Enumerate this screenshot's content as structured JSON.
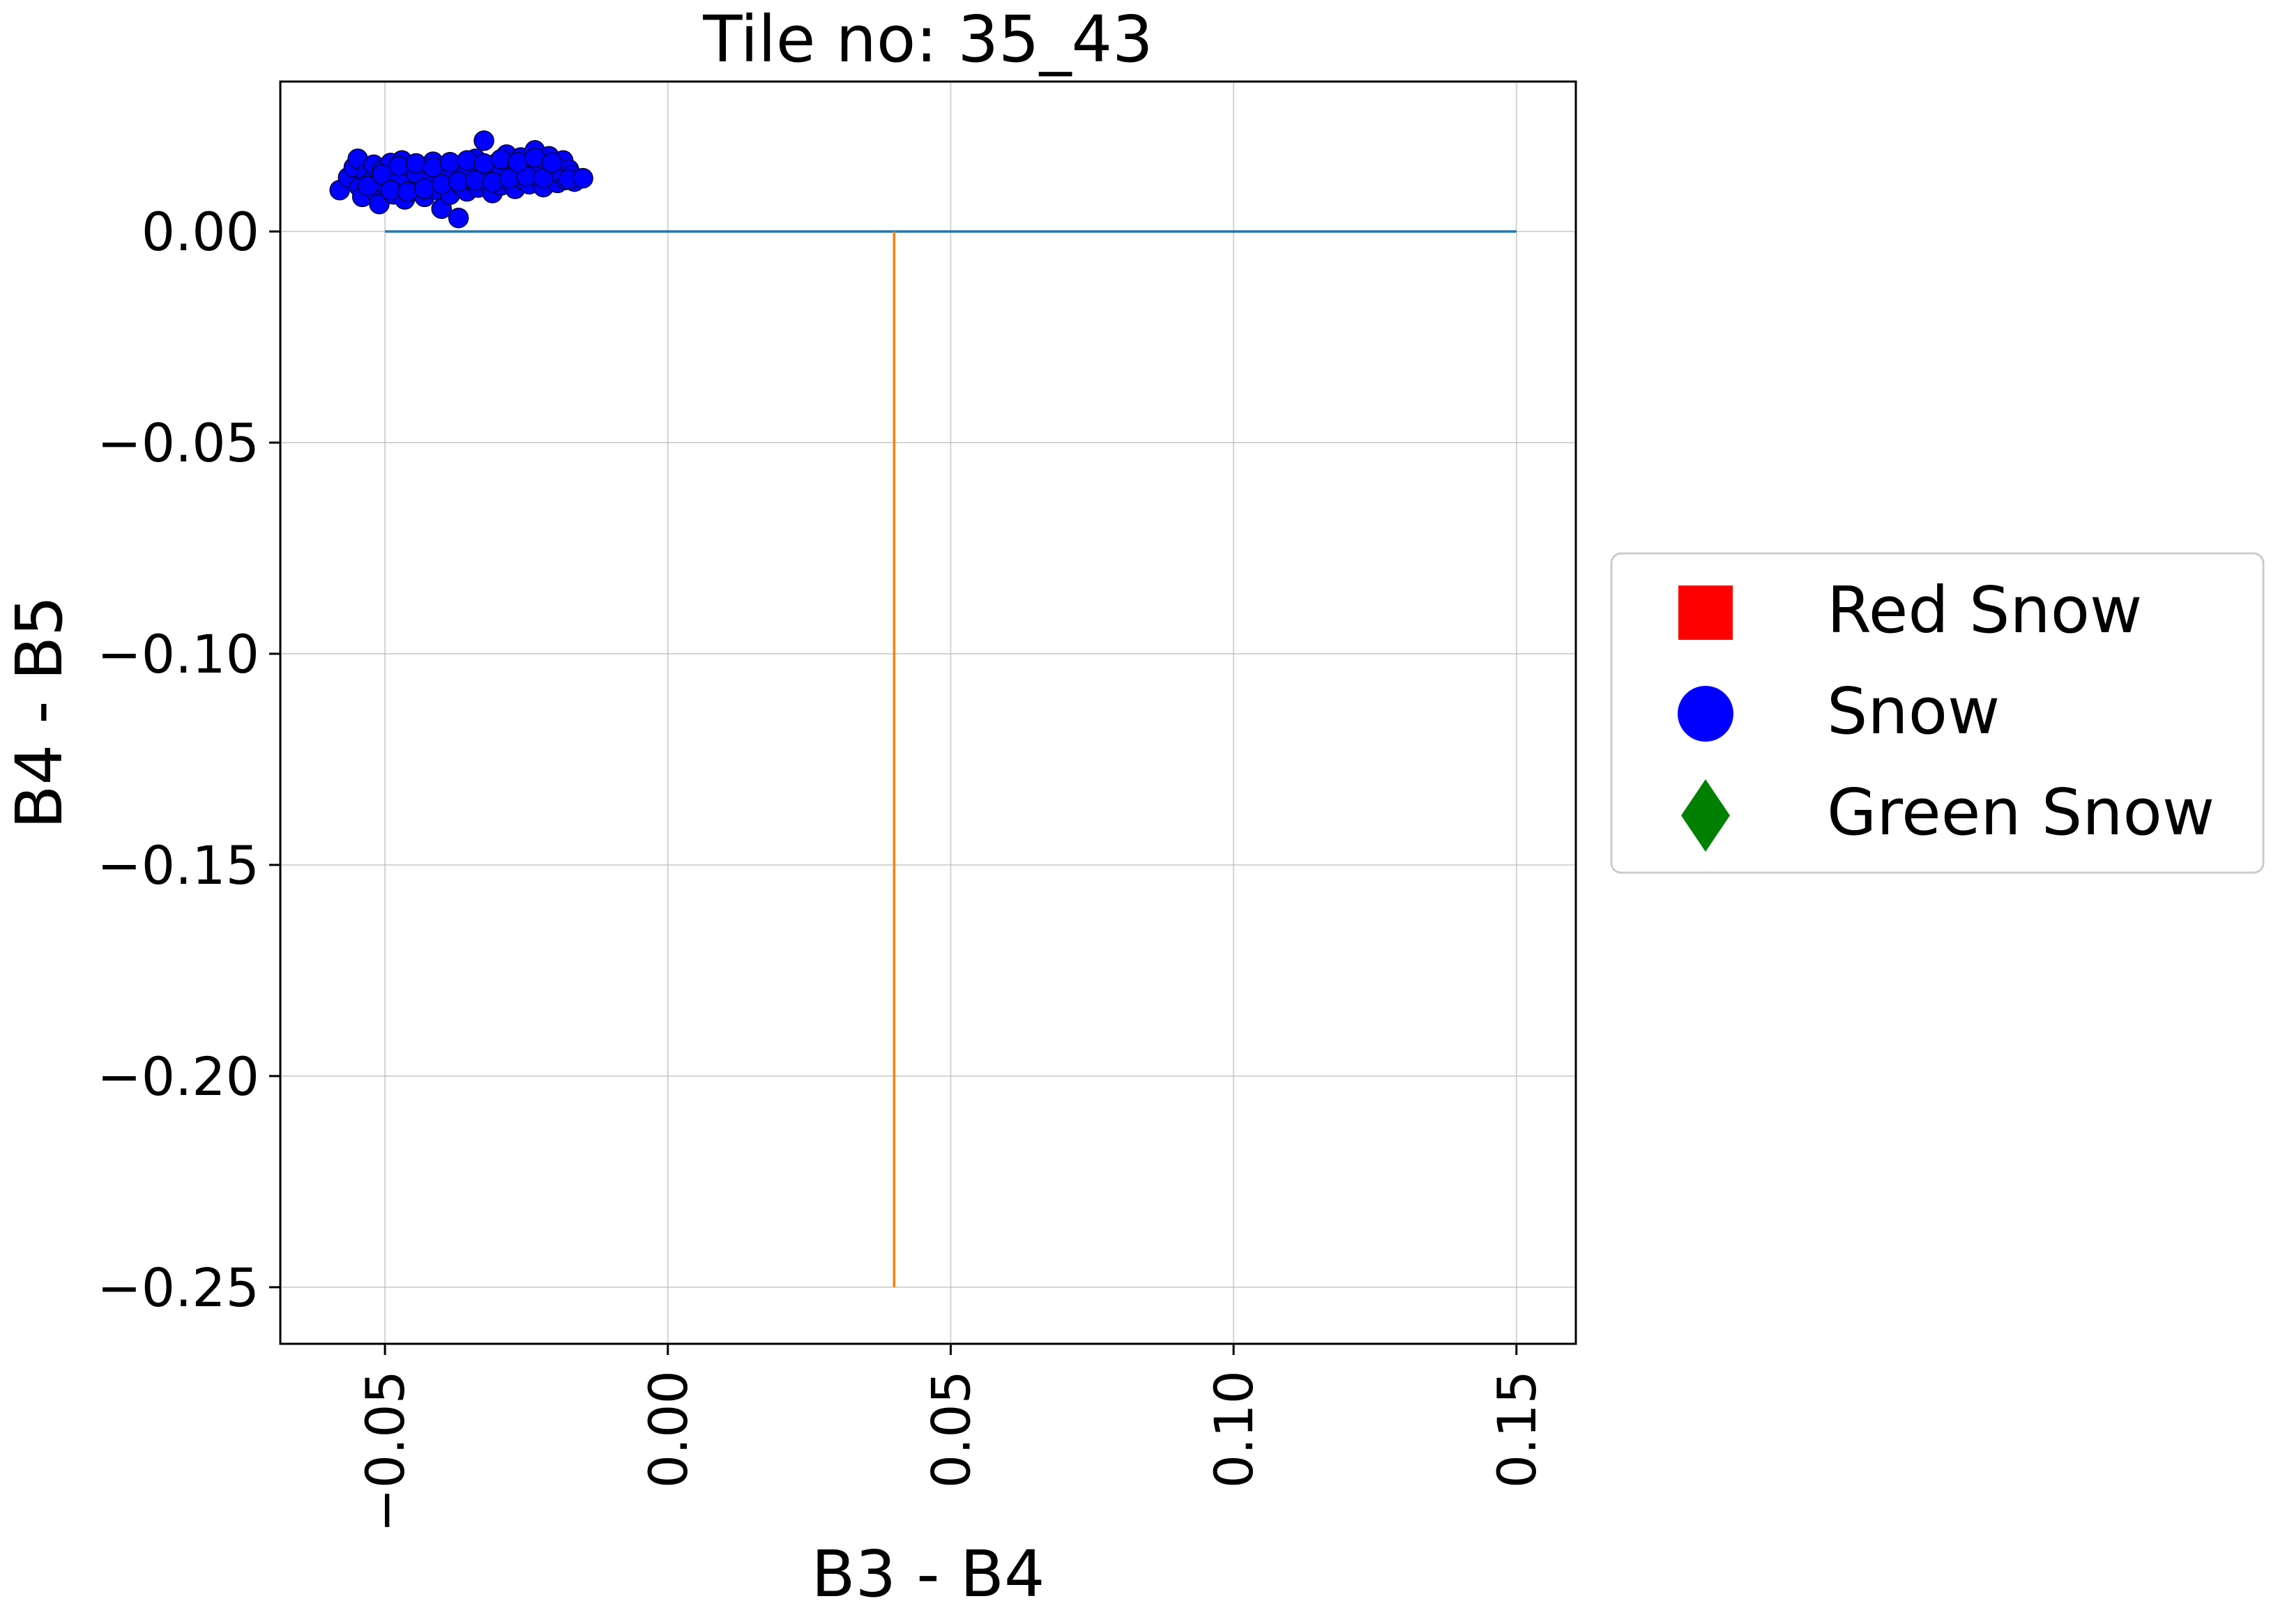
{
  "chart_data": {
    "type": "scatter",
    "title": "Tile no: 35_43",
    "xlabel": "B3 - B4",
    "ylabel": "B4 - B5",
    "xlim": [
      -0.0685,
      0.1605
    ],
    "ylim": [
      -0.2634,
      0.0355
    ],
    "x_ticks": [
      -0.05,
      0.0,
      0.05,
      0.1,
      0.15
    ],
    "x_tick_labels": [
      "−0.05",
      "0.00",
      "0.05",
      "0.10",
      "0.15"
    ],
    "y_ticks": [
      0.0,
      -0.05,
      -0.1,
      -0.15,
      -0.2,
      -0.25
    ],
    "y_tick_labels": [
      "0.00",
      "−0.05",
      "−0.10",
      "−0.15",
      "−0.20",
      "−0.25"
    ],
    "grid": true,
    "legend_position": "outside-right",
    "lines": [
      {
        "color": "#1f77b4",
        "x": [
          -0.05,
          0.15
        ],
        "y": [
          0.0,
          0.0
        ]
      },
      {
        "color": "#ff7f0e",
        "x": [
          0.04,
          0.04
        ],
        "y": [
          0.0,
          -0.25
        ]
      }
    ],
    "series": [
      {
        "name": "Red Snow",
        "marker": "square",
        "color": "#ff0000",
        "points": []
      },
      {
        "name": "Snow",
        "marker": "circle",
        "color": "#0000ff",
        "points": [
          [
            -0.058,
            0.0098
          ],
          [
            -0.0565,
            0.0128
          ],
          [
            -0.0555,
            0.0152
          ],
          [
            -0.0548,
            0.0172
          ],
          [
            -0.0545,
            0.0105
          ],
          [
            -0.054,
            0.0082
          ],
          [
            -0.0532,
            0.0138
          ],
          [
            -0.0525,
            0.0118
          ],
          [
            -0.052,
            0.0158
          ],
          [
            -0.0515,
            0.0092
          ],
          [
            -0.051,
            0.0065
          ],
          [
            -0.0505,
            0.0145
          ],
          [
            -0.05,
            0.0112
          ],
          [
            -0.0495,
            0.0128
          ],
          [
            -0.049,
            0.0162
          ],
          [
            -0.0485,
            0.0088
          ],
          [
            -0.048,
            0.0104
          ],
          [
            -0.0475,
            0.0142
          ],
          [
            -0.047,
            0.0168
          ],
          [
            -0.0465,
            0.0076
          ],
          [
            -0.046,
            0.0118
          ],
          [
            -0.0455,
            0.0133
          ],
          [
            -0.045,
            0.0096
          ],
          [
            -0.0445,
            0.0154
          ],
          [
            -0.044,
            0.0108
          ],
          [
            -0.0435,
            0.0125
          ],
          [
            -0.043,
            0.0082
          ],
          [
            -0.0425,
            0.0147
          ],
          [
            -0.042,
            0.0115
          ],
          [
            -0.0415,
            0.0165
          ],
          [
            -0.041,
            0.0099
          ],
          [
            -0.0405,
            0.0132
          ],
          [
            -0.04,
            0.0054
          ],
          [
            -0.0395,
            0.0118
          ],
          [
            -0.039,
            0.0143
          ],
          [
            -0.0385,
            0.0087
          ],
          [
            -0.038,
            0.0127
          ],
          [
            -0.0375,
            0.0157
          ],
          [
            -0.037,
            0.0032
          ],
          [
            -0.0365,
            0.0109
          ],
          [
            -0.036,
            0.0138
          ],
          [
            -0.0355,
            0.0095
          ],
          [
            -0.035,
            0.0123
          ],
          [
            -0.0345,
            0.0151
          ],
          [
            -0.034,
            0.0172
          ],
          [
            -0.0335,
            0.0104
          ],
          [
            -0.033,
            0.0138
          ],
          [
            -0.0325,
            0.0215
          ],
          [
            -0.032,
            0.0119
          ],
          [
            -0.0315,
            0.0146
          ],
          [
            -0.031,
            0.0091
          ],
          [
            -0.0305,
            0.0128
          ],
          [
            -0.03,
            0.0164
          ],
          [
            -0.0295,
            0.0109
          ],
          [
            -0.029,
            0.0137
          ],
          [
            -0.0285,
            0.0182
          ],
          [
            -0.028,
            0.0118
          ],
          [
            -0.0275,
            0.0152
          ],
          [
            -0.027,
            0.0101
          ],
          [
            -0.0265,
            0.0134
          ],
          [
            -0.026,
            0.0175
          ],
          [
            -0.0255,
            0.0122
          ],
          [
            -0.025,
            0.0158
          ],
          [
            -0.0245,
            0.0112
          ],
          [
            -0.024,
            0.0139
          ],
          [
            -0.0235,
            0.0192
          ],
          [
            -0.023,
            0.0127
          ],
          [
            -0.0225,
            0.0164
          ],
          [
            -0.022,
            0.0105
          ],
          [
            -0.0215,
            0.0142
          ],
          [
            -0.021,
            0.0178
          ],
          [
            -0.0205,
            0.0128
          ],
          [
            -0.02,
            0.0153
          ],
          [
            -0.0195,
            0.0115
          ],
          [
            -0.019,
            0.0138
          ],
          [
            -0.0185,
            0.0168
          ],
          [
            -0.018,
            0.0122
          ],
          [
            -0.0175,
            0.0147
          ],
          [
            -0.017,
            0.0134
          ],
          [
            -0.0165,
            0.0118
          ],
          [
            -0.053,
            0.0108
          ],
          [
            -0.0505,
            0.0135
          ],
          [
            -0.0475,
            0.0122
          ],
          [
            -0.0445,
            0.0138
          ],
          [
            -0.0415,
            0.0128
          ],
          [
            -0.0385,
            0.0139
          ],
          [
            -0.0355,
            0.0142
          ],
          [
            -0.0325,
            0.0136
          ],
          [
            -0.0295,
            0.0145
          ],
          [
            -0.0265,
            0.0148
          ],
          [
            -0.0235,
            0.0146
          ],
          [
            -0.0205,
            0.0141
          ],
          [
            -0.049,
            0.0098
          ],
          [
            -0.046,
            0.0094
          ],
          [
            -0.043,
            0.0101
          ],
          [
            -0.04,
            0.0112
          ],
          [
            -0.037,
            0.0118
          ],
          [
            -0.034,
            0.0121
          ],
          [
            -0.031,
            0.0117
          ],
          [
            -0.028,
            0.0126
          ],
          [
            -0.025,
            0.0131
          ],
          [
            -0.022,
            0.0126
          ],
          [
            -0.0475,
            0.0155
          ],
          [
            -0.0445,
            0.0161
          ],
          [
            -0.0415,
            0.0152
          ],
          [
            -0.0385,
            0.0164
          ],
          [
            -0.0355,
            0.0168
          ],
          [
            -0.0325,
            0.0161
          ],
          [
            -0.0295,
            0.0171
          ],
          [
            -0.0265,
            0.0164
          ],
          [
            -0.0235,
            0.0175
          ],
          [
            -0.0205,
            0.0163
          ],
          [
            -0.0175,
            0.0124
          ],
          [
            -0.015,
            0.0126
          ]
        ]
      },
      {
        "name": "Green Snow",
        "marker": "diamond",
        "color": "#008000",
        "points": []
      }
    ]
  }
}
